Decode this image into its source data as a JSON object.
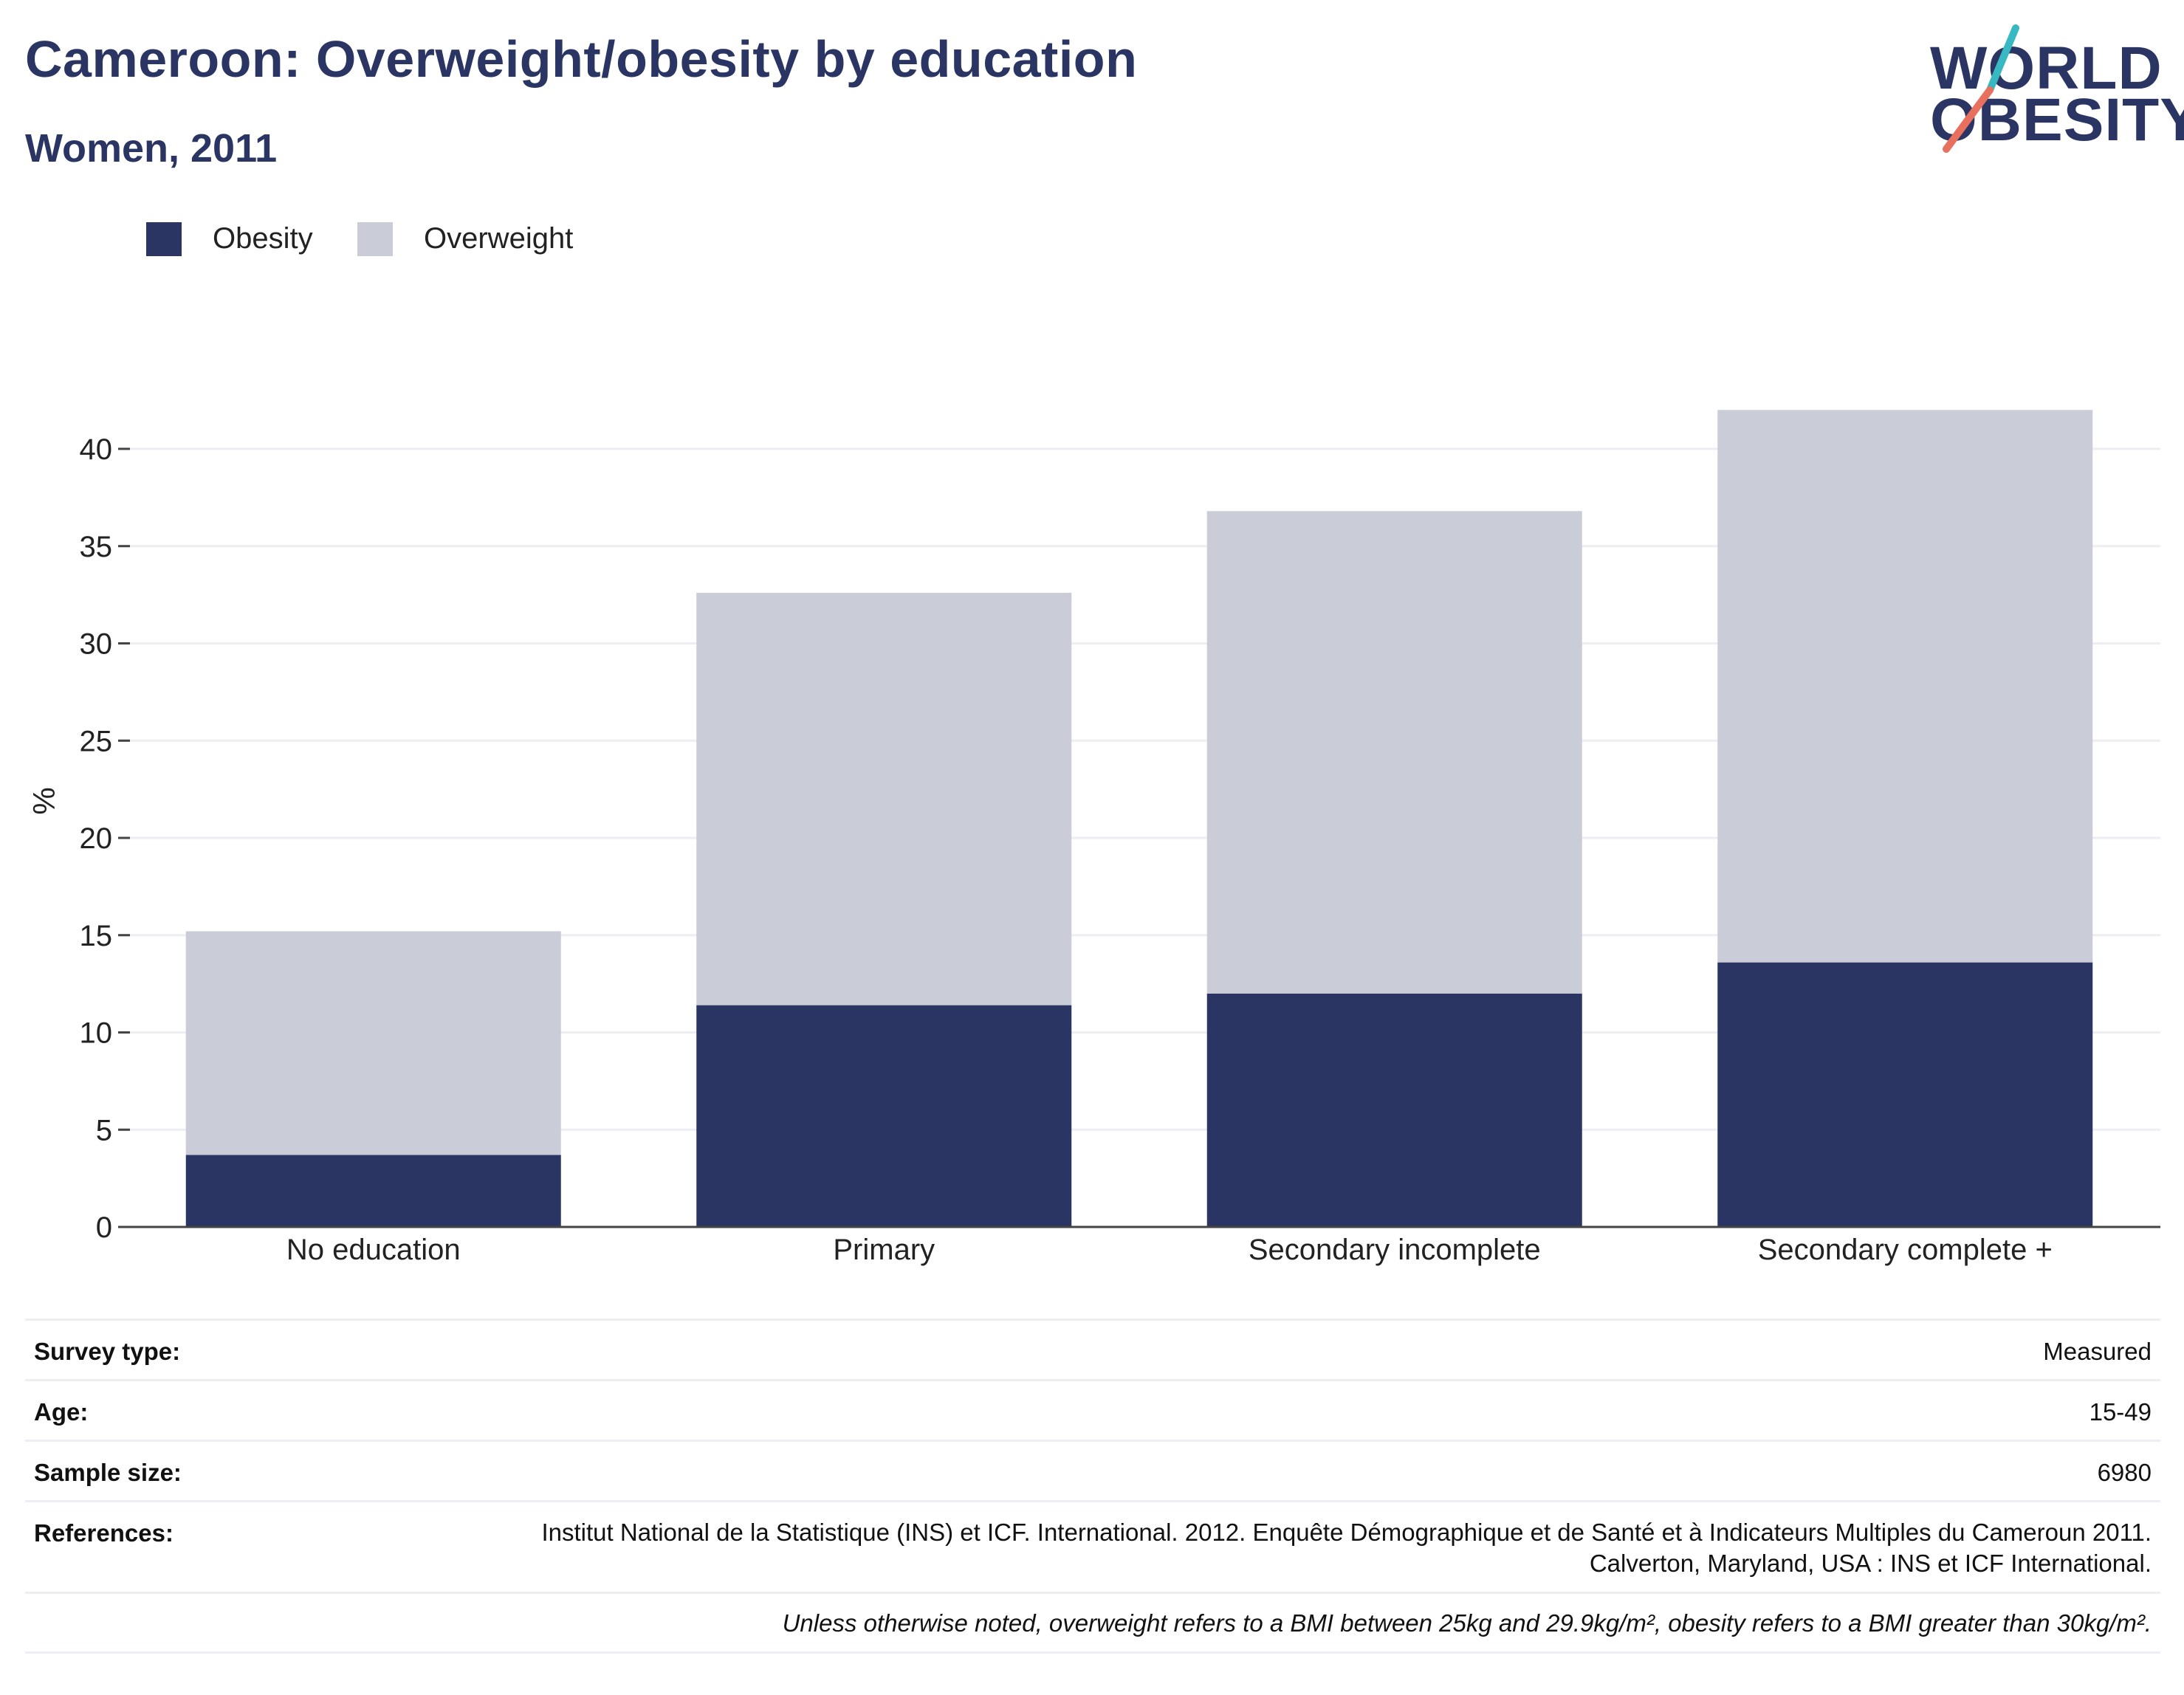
{
  "header": {
    "title": "Cameroon: Overweight/obesity by education",
    "subtitle": "Women, 2011"
  },
  "logo": {
    "line1": "WORLD",
    "line2": "OBESITY"
  },
  "colors": {
    "obesity": "#2a3564",
    "overweight": "#caccd8",
    "accent_teal": "#38b8c0",
    "accent_coral": "#e8705f"
  },
  "legend": [
    {
      "label": "Obesity",
      "color": "#2a3564"
    },
    {
      "label": "Overweight",
      "color": "#caccd8"
    }
  ],
  "chart_data": {
    "type": "bar",
    "stacked": true,
    "categories": [
      "No education",
      "Primary",
      "Secondary incomplete",
      "Secondary complete +"
    ],
    "series": [
      {
        "name": "Obesity",
        "values": [
          3.7,
          11.4,
          12.0,
          13.6
        ]
      },
      {
        "name": "Overweight",
        "values": [
          11.5,
          21.2,
          24.8,
          28.4
        ]
      }
    ],
    "ylabel": "%",
    "yticks": [
      0,
      5,
      10,
      15,
      20,
      25,
      30,
      35,
      40
    ],
    "ylim": [
      0,
      43
    ],
    "grid": true,
    "legend_position": "top-left"
  },
  "info": {
    "survey_type": {
      "label": "Survey type:",
      "value": "Measured"
    },
    "age": {
      "label": "Age:",
      "value": "15-49"
    },
    "sample_size": {
      "label": "Sample size:",
      "value": "6980"
    },
    "references": {
      "label": "References:",
      "value": "Institut National de la Statistique (INS) et ICF. International. 2012. Enquête Démographique et de Santé et à Indicateurs Multiples du Cameroun 2011. Calverton, Maryland, USA : INS et ICF International."
    },
    "note": "Unless otherwise noted, overweight refers to a BMI between 25kg and 29.9kg/m², obesity refers to a BMI greater than 30kg/m²."
  }
}
